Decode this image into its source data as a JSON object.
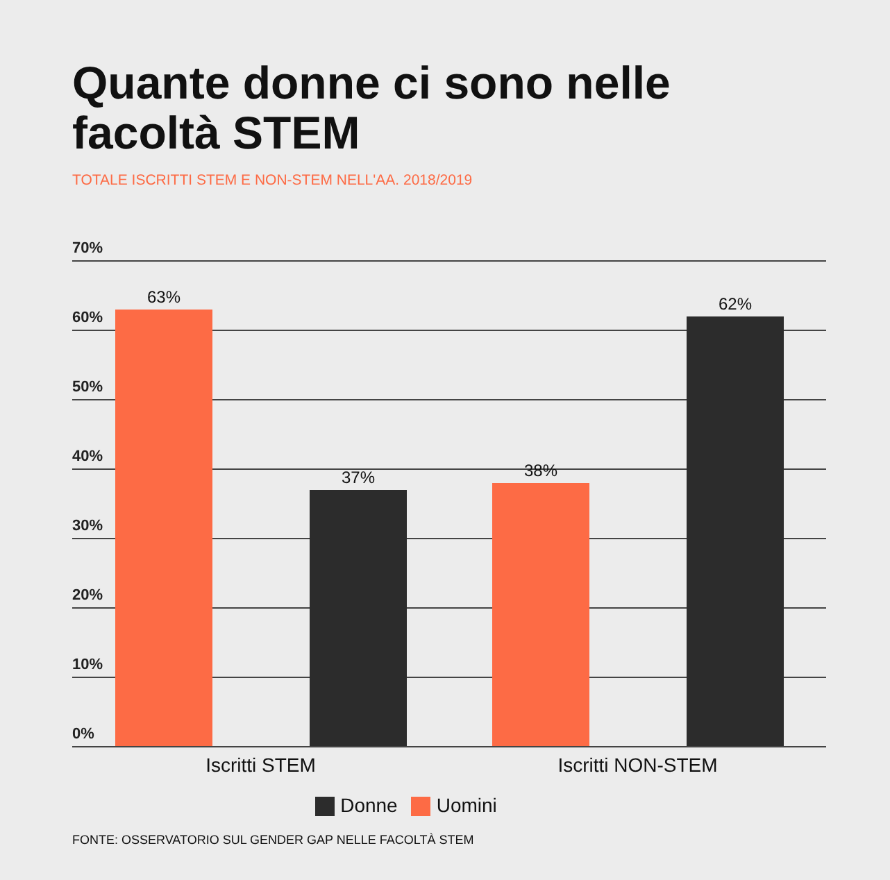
{
  "chart_data": {
    "type": "bar",
    "title": "Quante donne ci sono nelle facoltà STEM",
    "subtitle": "TOTALE ISCRITTI STEM E NON-STEM NELL'AA. 2018/2019",
    "categories": [
      "Iscritti STEM",
      "Iscritti NON-STEM"
    ],
    "series": [
      {
        "name": "Uomini",
        "color": "#fd6b45",
        "values": [
          63,
          38
        ],
        "value_labels": [
          "63%",
          "38%"
        ]
      },
      {
        "name": "Donne",
        "color": "#2c2c2c",
        "values": [
          37,
          62
        ],
        "value_labels": [
          "37%",
          "62%"
        ]
      }
    ],
    "ylim": [
      0,
      70
    ],
    "yticks": [
      {
        "value": 0,
        "label": "0%"
      },
      {
        "value": 10,
        "label": "10%"
      },
      {
        "value": 20,
        "label": "20%"
      },
      {
        "value": 30,
        "label": "30%"
      },
      {
        "value": 40,
        "label": "40%"
      },
      {
        "value": 50,
        "label": "50%"
      },
      {
        "value": 60,
        "label": "60%"
      },
      {
        "value": 70,
        "label": "70%"
      }
    ],
    "grid": "y",
    "legend": "bottom",
    "annotations": [
      "FONTE: OSSERVATORIO SUL GENDER GAP NELLE FACOLTÀ STEM"
    ]
  }
}
